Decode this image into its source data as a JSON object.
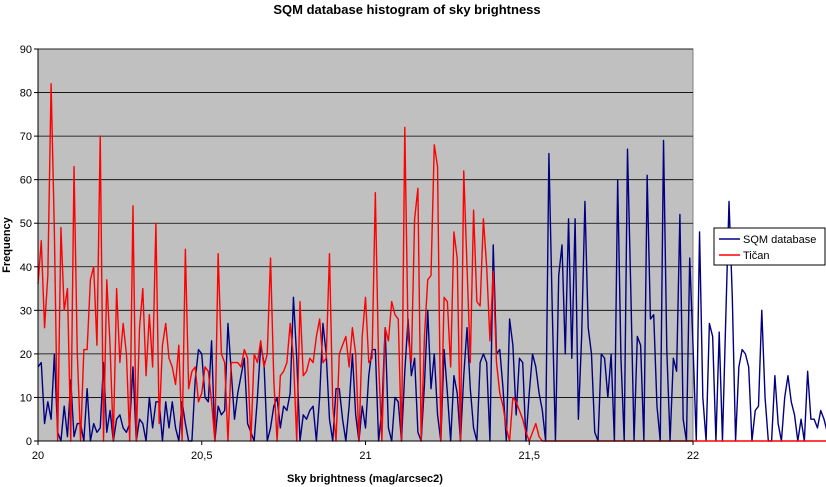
{
  "chart_data": {
    "type": "line",
    "title": "SQM database histogram of sky brightness",
    "xlabel": "Sky brightness (mag/arcsec2)",
    "ylabel": "Frequency",
    "xlim": [
      20,
      22
    ],
    "ylim": [
      0,
      90
    ],
    "x_ticks": [
      "20",
      "20,5",
      "21",
      "21,5",
      "22"
    ],
    "y_ticks": [
      "0",
      "10",
      "20",
      "30",
      "40",
      "50",
      "60",
      "70",
      "80",
      "90"
    ],
    "grid": "horizontal",
    "legend_position": "right",
    "plot_background": "#c0c0c0",
    "x_start": 20,
    "x_step": 0.01,
    "series": [
      {
        "name": "SQM database",
        "color": "#000080",
        "values": [
          17,
          18,
          4,
          9,
          5,
          20,
          2,
          0,
          8,
          1,
          14,
          1,
          4,
          4,
          0,
          12,
          0,
          4,
          2,
          3,
          18,
          2,
          7,
          0,
          5,
          6,
          3,
          2,
          4,
          17,
          0,
          5,
          4,
          0,
          10,
          3,
          9,
          9,
          0,
          9,
          3,
          9,
          3,
          0,
          9,
          4,
          0,
          0,
          14,
          21,
          20,
          10,
          9,
          23,
          0,
          8,
          6,
          7,
          27,
          16,
          5,
          11,
          15,
          19,
          4,
          2,
          0,
          10,
          22,
          18,
          0,
          3,
          8,
          10,
          3,
          8,
          7,
          11,
          33,
          19,
          0,
          6,
          5,
          7,
          8,
          0,
          10,
          27,
          20,
          5,
          0,
          12,
          12,
          5,
          0,
          8,
          20,
          6,
          0,
          8,
          3,
          15,
          21,
          21,
          0,
          7,
          26,
          3,
          0,
          10,
          9,
          0,
          16,
          28,
          15,
          19,
          2,
          0,
          13,
          30,
          12,
          20,
          6,
          0,
          21,
          11,
          0,
          15,
          11,
          0,
          15,
          26,
          12,
          3,
          0,
          18,
          20,
          18,
          0,
          45,
          20,
          21,
          12,
          0,
          28,
          22,
          6,
          19,
          18,
          0,
          11,
          20,
          17,
          11,
          7,
          0,
          66,
          31,
          0,
          38,
          45,
          20,
          51,
          19,
          51,
          5,
          24,
          55,
          26,
          20,
          2,
          0,
          20,
          19,
          10,
          20,
          0,
          60,
          19,
          0,
          67,
          35,
          0,
          24,
          22,
          0,
          61,
          28,
          29,
          8,
          0,
          69,
          21,
          0,
          19,
          16,
          52,
          5,
          0,
          42,
          22,
          0,
          48,
          10,
          0,
          27,
          24,
          0,
          25,
          0,
          28,
          55,
          33,
          0,
          17,
          21,
          20,
          17,
          0,
          7,
          8,
          30,
          10,
          0,
          0,
          15,
          4,
          0,
          10,
          15,
          9,
          6,
          0,
          5,
          0,
          16,
          5,
          5,
          3,
          7,
          5,
          2,
          1,
          0,
          6,
          6,
          10
        ]
      },
      {
        "name": "Tičan",
        "color": "#ff0000",
        "values": [
          36,
          46,
          26,
          38,
          82,
          48,
          0,
          49,
          30,
          35,
          0,
          63,
          20,
          0,
          21,
          21,
          37,
          40,
          22,
          70,
          0,
          37,
          22,
          0,
          35,
          18,
          27,
          20,
          0,
          54,
          0,
          26,
          35,
          15,
          29,
          17,
          50,
          4,
          22,
          27,
          19,
          17,
          13,
          22,
          0,
          44,
          12,
          16,
          17,
          9,
          11,
          17,
          16,
          9,
          0,
          43,
          20,
          18,
          0,
          18,
          18,
          18,
          17,
          21,
          19,
          0,
          20,
          18,
          23,
          17,
          20,
          42,
          14,
          0,
          15,
          16,
          18,
          27,
          19,
          0,
          32,
          15,
          16,
          19,
          18,
          24,
          28,
          18,
          19,
          43,
          8,
          0,
          20,
          22,
          24,
          17,
          26,
          20,
          0,
          24,
          33,
          18,
          19,
          57,
          18,
          0,
          26,
          23,
          32,
          29,
          28,
          0,
          72,
          24,
          18,
          51,
          58,
          0,
          24,
          37,
          38,
          68,
          63,
          0,
          33,
          32,
          17,
          48,
          42,
          0,
          62,
          40,
          18,
          53,
          32,
          31,
          51,
          40,
          23,
          39,
          18,
          11,
          8,
          3,
          0,
          10,
          9,
          7,
          5,
          2,
          0,
          2,
          4,
          1,
          0,
          0,
          0,
          0,
          0,
          0,
          0,
          0,
          0,
          0,
          0,
          0,
          0,
          0,
          0,
          0,
          0,
          0,
          0,
          0,
          0,
          0,
          0,
          0,
          0,
          0,
          0,
          0,
          0,
          0,
          0,
          0,
          0,
          0,
          0,
          0,
          0,
          0,
          0,
          0,
          0,
          0,
          0,
          0,
          0,
          0,
          0,
          0,
          0,
          0,
          0,
          0,
          0,
          0,
          0,
          0,
          0,
          0,
          0,
          0,
          0,
          0,
          0,
          0,
          0,
          0,
          0,
          0,
          0,
          0,
          0,
          0,
          0,
          0,
          0,
          0,
          0,
          0,
          0,
          0,
          0,
          0,
          0,
          0,
          0,
          0,
          0,
          0,
          0,
          0,
          0,
          0,
          0,
          0,
          0,
          0,
          0,
          0,
          0,
          0,
          0,
          0,
          0,
          0,
          0,
          0,
          0,
          0,
          0,
          0,
          0,
          0,
          0,
          0,
          0,
          0,
          0,
          0,
          0,
          0,
          0,
          0,
          0,
          0,
          0,
          0,
          0,
          0,
          0
        ]
      }
    ]
  }
}
